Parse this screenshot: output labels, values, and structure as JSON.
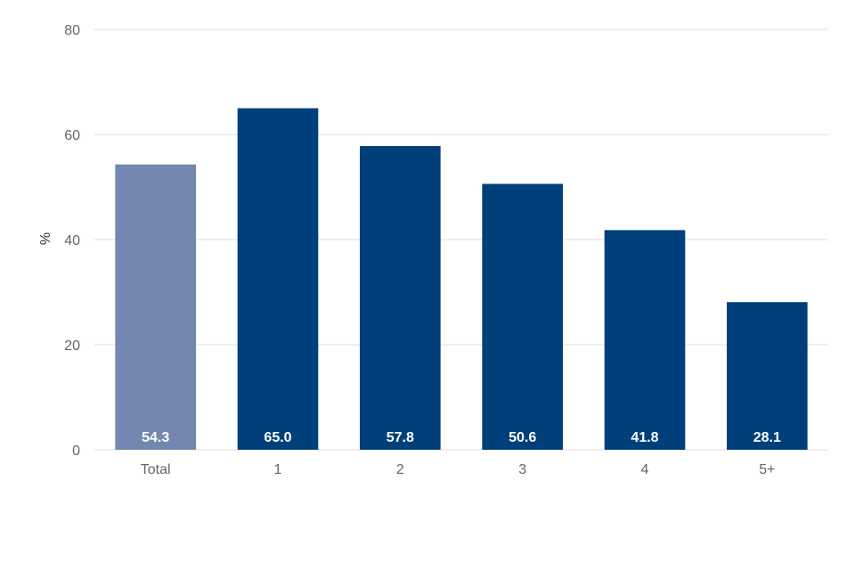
{
  "chart_data": {
    "type": "bar",
    "title": "",
    "xlabel": "",
    "ylabel": "%",
    "ylim": [
      0,
      80
    ],
    "yticks": [
      0,
      20,
      40,
      60,
      80
    ],
    "grid": true,
    "legend": "none",
    "categories": [
      "Total",
      "1",
      "2",
      "3",
      "4",
      "5+"
    ],
    "values": [
      54.3,
      65.0,
      57.8,
      50.6,
      41.8,
      28.1
    ],
    "value_labels": [
      "54.3",
      "65.0",
      "57.8",
      "50.6",
      "41.8",
      "28.1"
    ],
    "colors": [
      "#7387b0",
      "#00407a",
      "#00407a",
      "#00407a",
      "#00407a",
      "#00407a"
    ],
    "gridline_color": "#dddddd",
    "tick_labels_y": [
      "0",
      "20",
      "40",
      "60",
      "80"
    ]
  }
}
